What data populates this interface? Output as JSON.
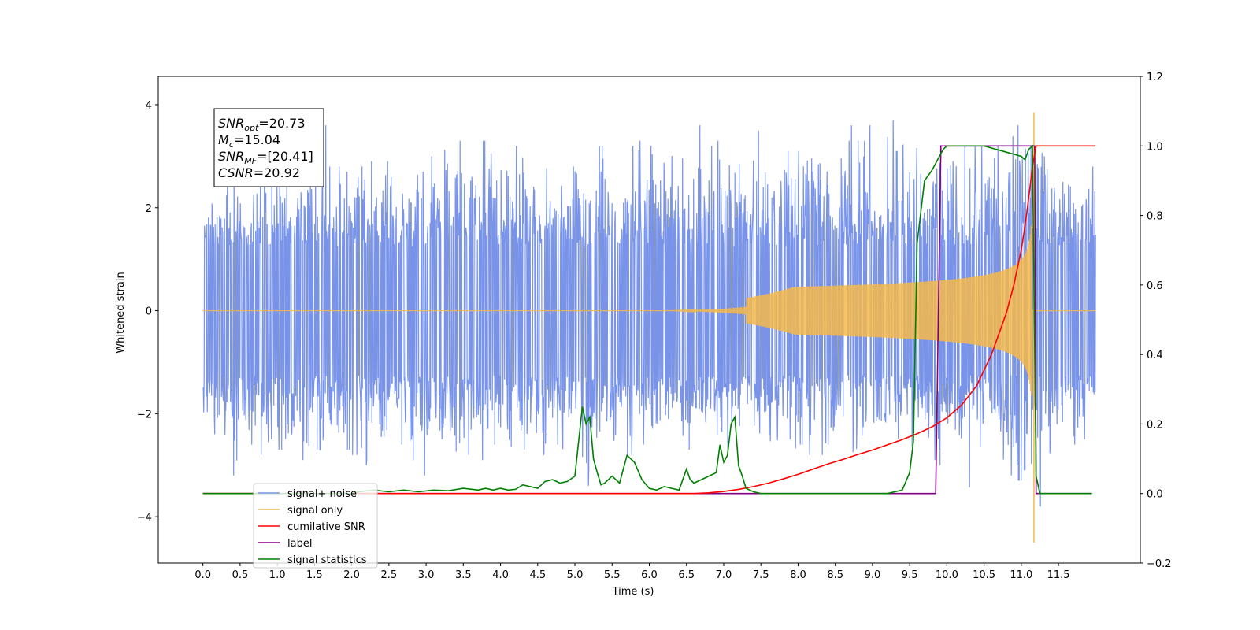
{
  "chart_data": {
    "type": "line",
    "title": "",
    "xlabel": "Time (s)",
    "ylabel": "Whitened strain",
    "y2label": "",
    "xlim": [
      -0.6,
      12.6
    ],
    "ylim": [
      -4.9,
      4.55
    ],
    "y2lim": [
      -0.2,
      1.2
    ],
    "xticks": [
      0.0,
      0.5,
      1.0,
      1.5,
      2.0,
      2.5,
      3.0,
      3.5,
      4.0,
      4.5,
      5.0,
      5.5,
      6.0,
      6.5,
      7.0,
      7.5,
      8.0,
      8.5,
      9.0,
      9.5,
      10.0,
      10.5,
      11.0,
      11.5
    ],
    "xtick_labels": [
      "0.0",
      "0.5",
      "1.0",
      "1.5",
      "2.0",
      "2.5",
      "3.0",
      "3.5",
      "4.0",
      "4.5",
      "5.0",
      "5.5",
      "6.0",
      "6.5",
      "7.0",
      "7.5",
      "8.0",
      "8.5",
      "9.0",
      "9.5",
      "10.0",
      "10.5",
      "11.0",
      "11.5"
    ],
    "yticks": [
      -4,
      -2,
      0,
      2,
      4
    ],
    "ytick_labels": [
      "−4",
      "−2",
      "0",
      "2",
      "4"
    ],
    "y2ticks": [
      -0.2,
      0.0,
      0.2,
      0.4,
      0.6,
      0.8,
      1.0,
      1.2
    ],
    "y2tick_labels": [
      "−0.2",
      "0.0",
      "0.2",
      "0.4",
      "0.6",
      "0.8",
      "1.0",
      "1.2"
    ],
    "grid": false,
    "legend_position": "lower-left",
    "annotation": {
      "lines": [
        {
          "sym": "SNR",
          "sub": "opt",
          "rest": "=20.73"
        },
        {
          "sym": "M",
          "sub": "c",
          "rest": "=15.04"
        },
        {
          "sym": "SNR",
          "sub": "MF",
          "rest": "=[20.41]"
        },
        {
          "sym": "CSNR",
          "sub": "",
          "rest": "=20.92"
        }
      ]
    },
    "series": [
      {
        "name": "signal+ noise",
        "color": "#7893e8",
        "axis": "left",
        "t_range": [
          0.0,
          12.0
        ],
        "envelope_max": [
          1.8,
          2.3,
          2.5,
          2.7,
          3.2,
          2.6,
          2.6,
          2.7,
          3.3,
          3.1,
          2.7,
          2.8,
          2.6,
          2.8,
          3.0,
          2.7,
          3.6,
          2.8,
          2.8,
          3.1,
          2.6,
          2.8,
          2.9,
          2.7,
          2.9,
          2.7,
          2.6,
          2.9,
          2.8,
          2.7,
          3.0,
          2.7,
          3.6,
          2.9,
          3.3,
          2.8,
          2.6,
          3.3,
          3.5,
          3.0,
          3.3,
          2.9,
          3.2,
          3.0,
          3.1,
          2.9,
          2.9,
          3.6,
          3.6,
          2.8,
          3.3,
          3.1,
          3.0,
          3.2,
          3.3,
          3.2,
          2.8,
          3.2,
          3.3,
          3.0,
          3.2,
          3.2,
          3.2,
          3.3,
          3.3,
          3.0,
          3.6,
          3.3,
          3.2,
          3.3,
          3.1,
          3.2,
          3.0,
          3.2,
          3.5,
          2.8,
          3.0,
          2.8,
          3.1,
          3.0,
          3.1,
          3.2,
          3.4,
          3.2,
          3.2,
          3.0,
          3.3,
          3.6,
          3.3,
          3.6,
          3.0,
          3.0,
          3.7,
          3.1,
          3.4,
          3.3,
          3.0,
          3.1,
          2.9,
          3.1,
          3.3,
          3.0,
          3.6,
          3.2,
          3.5,
          3.3,
          3.2,
          3.6,
          3.7,
          3.6,
          3.4,
          3.8,
          3.8,
          3.0,
          3.0,
          3.2,
          3.0,
          3.2,
          3.0,
          3.4
        ],
        "envelope_min": [
          -2.3,
          -2.4,
          -2.6,
          -2.8,
          -3.2,
          -2.9,
          -2.6,
          -2.8,
          -2.7,
          -2.5,
          -2.7,
          -2.9,
          -3.0,
          -2.9,
          -2.8,
          -2.7,
          -3.0,
          -2.6,
          -2.8,
          -2.7,
          -2.8,
          -3.0,
          -2.9,
          -2.6,
          -2.9,
          -2.8,
          -2.6,
          -2.8,
          -2.9,
          -3.2,
          -2.8,
          -2.6,
          -2.5,
          -2.8,
          -3.0,
          -2.8,
          -2.7,
          -2.9,
          -2.8,
          -2.6,
          -2.8,
          -2.9,
          -2.6,
          -2.7,
          -2.8,
          -2.8,
          -2.7,
          -2.6,
          -2.9,
          -2.9,
          -2.8,
          -3.4,
          -2.6,
          -2.6,
          -2.9,
          -2.8,
          -2.5,
          -2.8,
          -2.9,
          -2.6,
          -3.0,
          -2.8,
          -2.8,
          -2.6,
          -2.6,
          -2.7,
          -2.9,
          -2.8,
          -2.6,
          -2.6,
          -2.7,
          -2.7,
          -2.8,
          -2.6,
          -2.6,
          -2.7,
          -2.9,
          -2.6,
          -2.8,
          -2.8,
          -2.6,
          -2.8,
          -2.7,
          -2.8,
          -2.6,
          -2.9,
          -2.8,
          -3.6,
          -2.6,
          -2.7,
          -2.5,
          -2.8,
          -2.6,
          -2.7,
          -2.5,
          -3.0,
          -2.8,
          -2.9,
          -3.0,
          -3.0,
          -2.8,
          -2.9,
          -2.6,
          -3.7,
          -2.9,
          -2.6,
          -2.8,
          -3.4,
          -3.2,
          -3.3,
          -3.1,
          -3.5,
          -3.8,
          -3.2,
          -2.8,
          -2.6,
          -2.7,
          -2.6,
          -2.5,
          -2.0
        ]
      },
      {
        "name": "signal only",
        "color": "#f5b94a",
        "axis": "left",
        "t_range": [
          0.0,
          12.0
        ],
        "merger_time": 11.15,
        "peak_amplitude": 3.85,
        "negative_spike": -4.5
      },
      {
        "name": "cumilative SNR",
        "color": "#ff0000",
        "axis": "right",
        "x": [
          0.0,
          6.6,
          6.8,
          7.0,
          7.2,
          7.4,
          7.6,
          7.8,
          8.0,
          8.2,
          8.4,
          8.6,
          8.8,
          9.0,
          9.2,
          9.4,
          9.6,
          9.8,
          10.0,
          10.2,
          10.4,
          10.6,
          10.8,
          10.9,
          11.0,
          11.05,
          11.1,
          11.15,
          11.2,
          12.0
        ],
        "y": [
          0.0,
          0.0,
          0.002,
          0.006,
          0.012,
          0.02,
          0.03,
          0.042,
          0.055,
          0.07,
          0.085,
          0.098,
          0.112,
          0.125,
          0.14,
          0.155,
          0.172,
          0.192,
          0.218,
          0.255,
          0.31,
          0.4,
          0.52,
          0.6,
          0.7,
          0.77,
          0.85,
          0.94,
          1.0,
          1.0
        ]
      },
      {
        "name": "label",
        "color": "#800080",
        "axis": "right",
        "x": [
          0.0,
          9.85,
          9.92,
          11.18,
          11.2,
          11.95
        ],
        "y": [
          0.0,
          0.0,
          1.0,
          1.0,
          0.0,
          0.0
        ]
      },
      {
        "name": "signal statistics",
        "color": "#008000",
        "axis": "right",
        "x": [
          0.0,
          1.0,
          2.0,
          2.1,
          2.3,
          2.5,
          2.7,
          2.9,
          3.1,
          3.3,
          3.5,
          3.7,
          3.8,
          3.9,
          4.0,
          4.1,
          4.2,
          4.3,
          4.4,
          4.5,
          4.6,
          4.7,
          4.8,
          4.9,
          5.0,
          5.1,
          5.15,
          5.2,
          5.25,
          5.3,
          5.35,
          5.4,
          5.45,
          5.5,
          5.6,
          5.7,
          5.8,
          5.9,
          6.0,
          6.1,
          6.2,
          6.3,
          6.4,
          6.5,
          6.55,
          6.6,
          6.7,
          6.8,
          6.9,
          6.95,
          7.0,
          7.05,
          7.1,
          7.15,
          7.2,
          7.25,
          7.3,
          7.4,
          7.5,
          7.6,
          7.8,
          8.0,
          9.0,
          9.2,
          9.4,
          9.5,
          9.55,
          9.6,
          9.7,
          9.8,
          9.9,
          9.95,
          10.0,
          10.2,
          10.5,
          11.0,
          11.05,
          11.1,
          11.15,
          11.2,
          11.25,
          11.3,
          11.4,
          11.95
        ],
        "y": [
          0.0,
          0.0,
          0.0,
          0.005,
          0.01,
          0.005,
          0.01,
          0.005,
          0.01,
          0.008,
          0.015,
          0.01,
          0.015,
          0.01,
          0.015,
          0.01,
          0.012,
          0.025,
          0.02,
          0.015,
          0.035,
          0.04,
          0.03,
          0.035,
          0.05,
          0.25,
          0.2,
          0.22,
          0.1,
          0.06,
          0.025,
          0.03,
          0.04,
          0.05,
          0.03,
          0.11,
          0.09,
          0.04,
          0.015,
          0.01,
          0.02,
          0.015,
          0.01,
          0.07,
          0.04,
          0.03,
          0.04,
          0.05,
          0.06,
          0.14,
          0.09,
          0.11,
          0.2,
          0.22,
          0.08,
          0.05,
          0.015,
          0.005,
          0.0,
          0.0,
          0.0,
          0.0,
          0.0,
          0.0,
          0.01,
          0.06,
          0.15,
          0.72,
          0.9,
          0.93,
          0.97,
          0.99,
          1.0,
          1.0,
          1.0,
          0.97,
          0.96,
          0.99,
          1.0,
          0.05,
          0.0,
          0.0,
          0.0,
          0.0
        ]
      }
    ]
  }
}
